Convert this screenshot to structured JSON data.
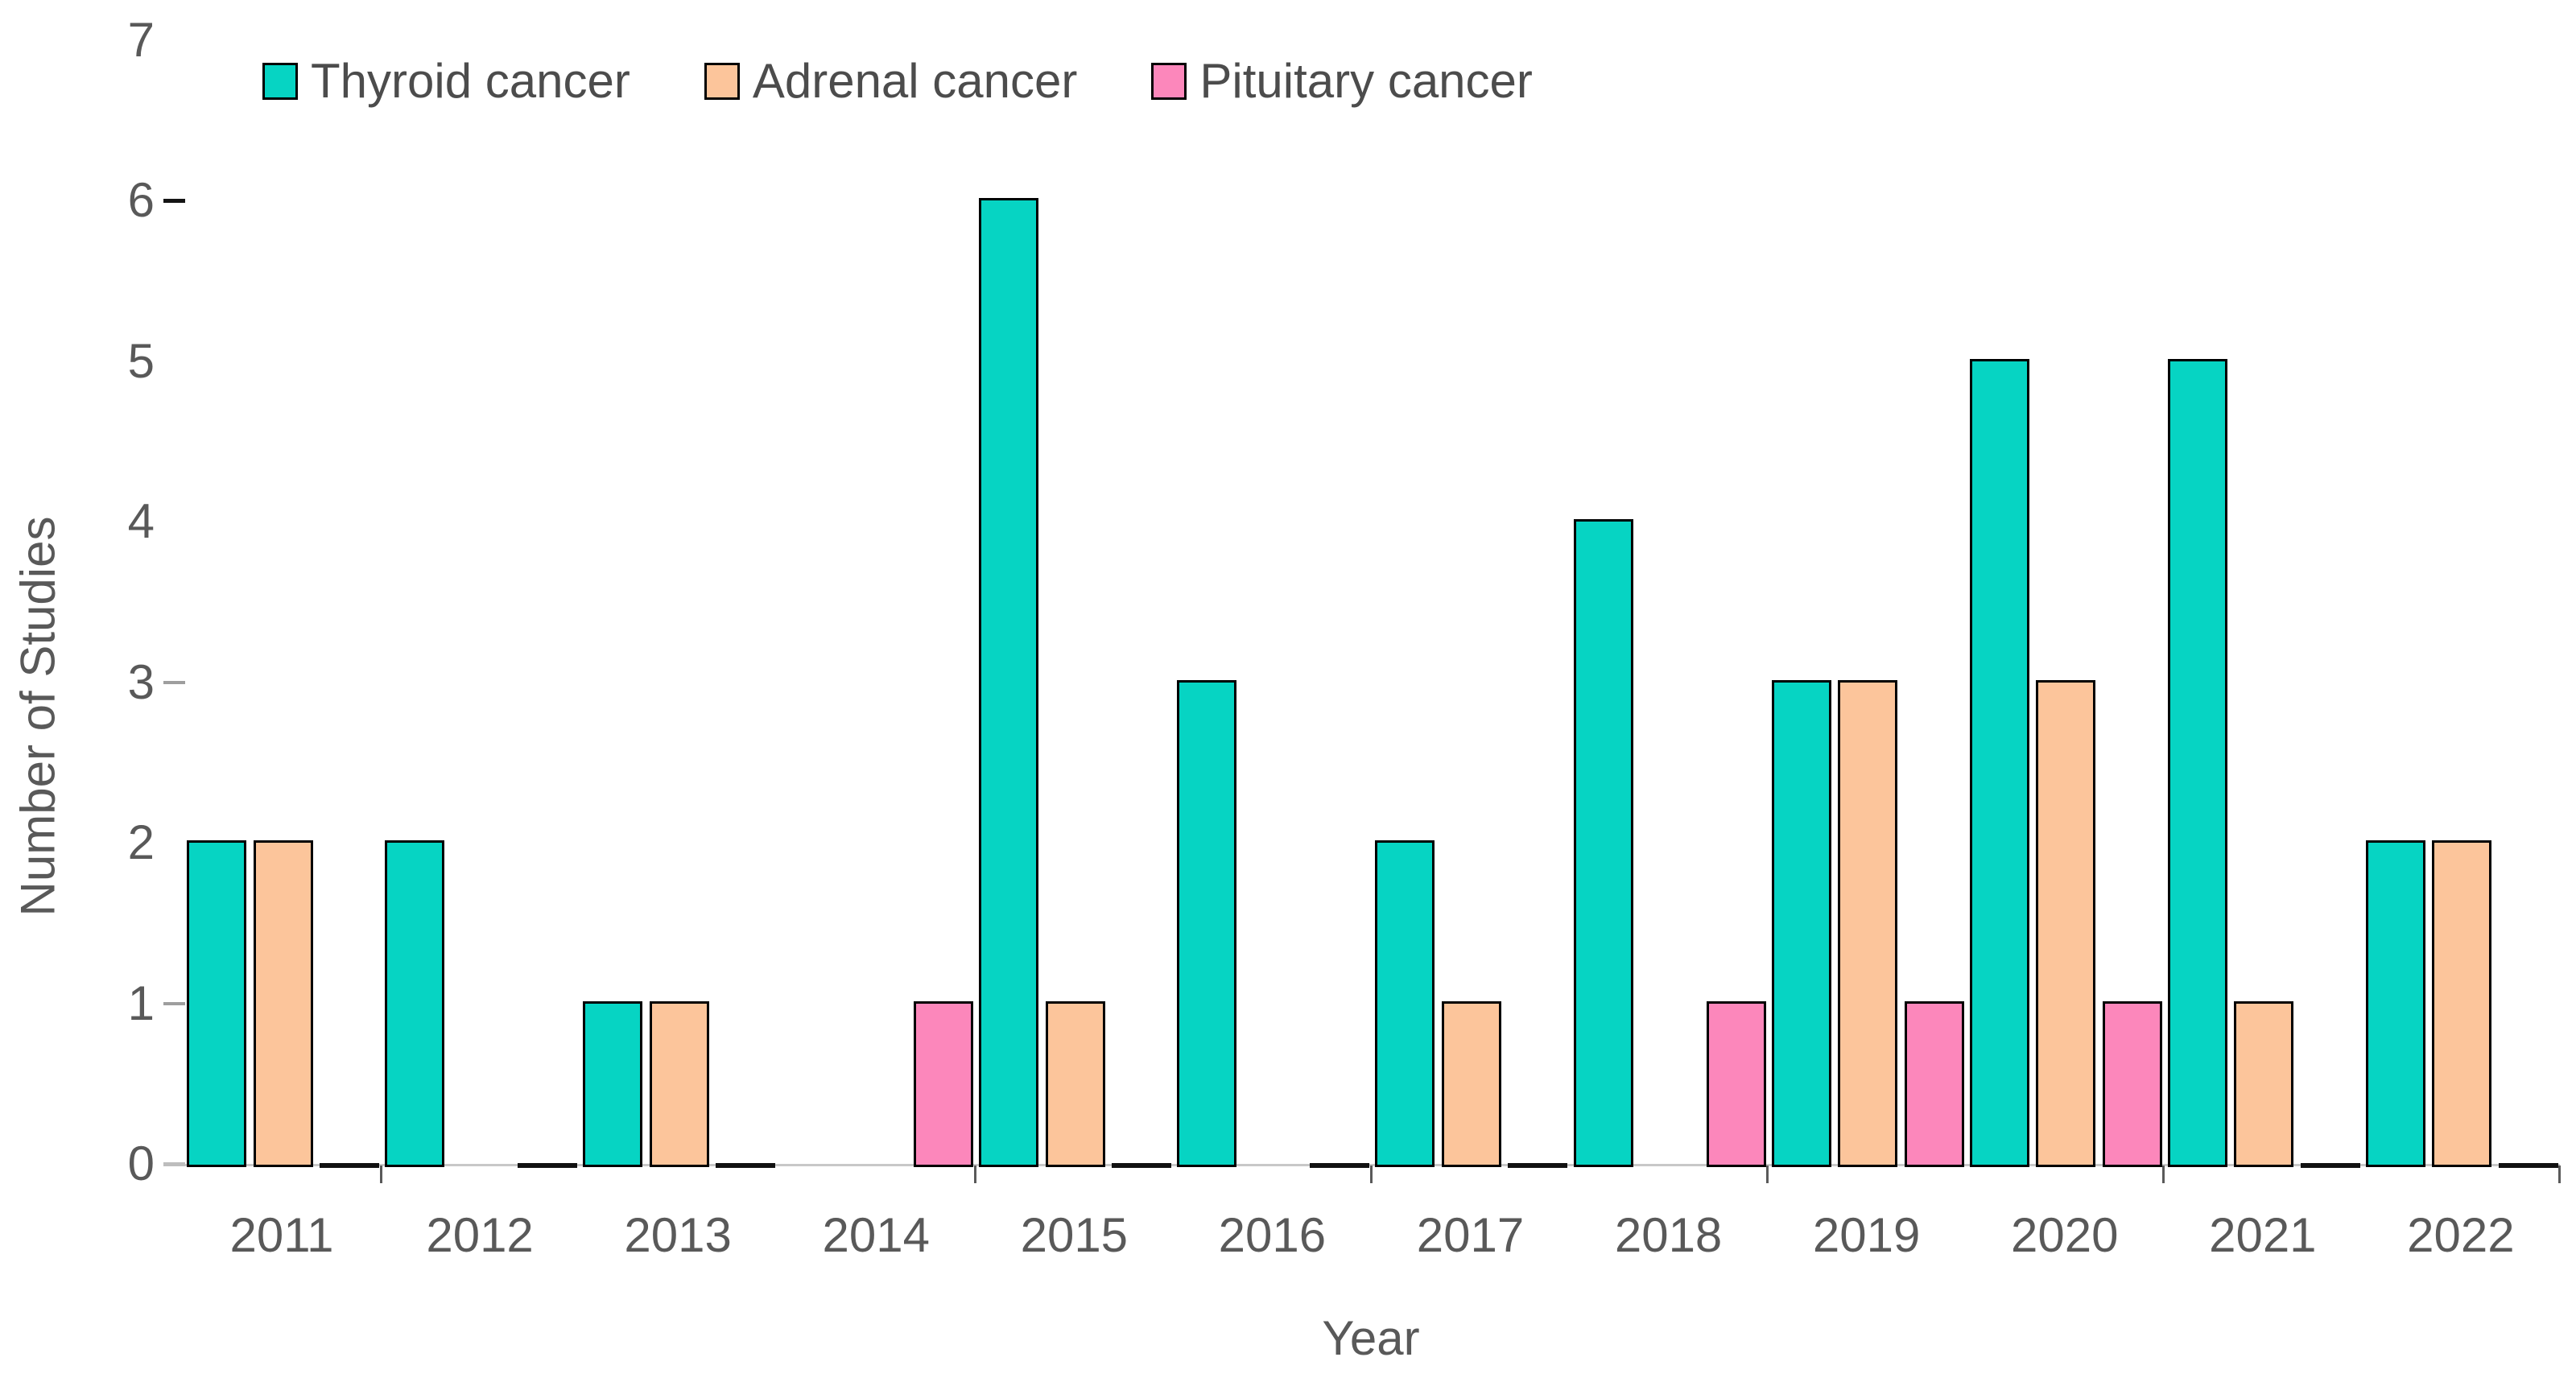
{
  "chart_data": {
    "type": "bar",
    "title": "",
    "xlabel": "Year",
    "ylabel": "Number of Studies",
    "categories": [
      "2011",
      "2012",
      "2013",
      "2014",
      "2015",
      "2016",
      "2017",
      "2018",
      "2019",
      "2020",
      "2021",
      "2022"
    ],
    "series": [
      {
        "name": "Thyroid cancer",
        "color": "#06D4C3",
        "zero_dash": false,
        "values": [
          2,
          2,
          1,
          0,
          6,
          3,
          2,
          4,
          3,
          5,
          5,
          2
        ]
      },
      {
        "name": "Adrenal cancer",
        "color": "#FCC59B",
        "zero_dash": false,
        "values": [
          2,
          0,
          1,
          0,
          1,
          0,
          1,
          0,
          3,
          3,
          1,
          2
        ]
      },
      {
        "name": "Pituitary cancer",
        "color": "#FC87BB",
        "zero_dash": true,
        "values": [
          0,
          0,
          0,
          1,
          0,
          0,
          0,
          1,
          1,
          1,
          0,
          0
        ]
      }
    ],
    "ylim": [
      0,
      7
    ],
    "yticks": [
      0,
      1,
      2,
      3,
      4,
      5,
      6,
      7
    ],
    "y_dashes": [
      {
        "level": 6,
        "color": "#141414",
        "thickness": 5
      },
      {
        "level": 3,
        "color": "#9e9e9e",
        "thickness": 4
      },
      {
        "level": 1,
        "color": "#9e9e9e",
        "thickness": 4
      },
      {
        "level": 0,
        "color": "#bdbdbd",
        "thickness": 4
      }
    ],
    "x_boundary_ticks": [
      1,
      4,
      6,
      8,
      10,
      12
    ],
    "legend_position": "top-left",
    "grid": false,
    "bar_border_color": "#000000",
    "zero_dash_color": "#111111",
    "axis_line_color": "#c8c8c8",
    "text_color": "#595959"
  }
}
